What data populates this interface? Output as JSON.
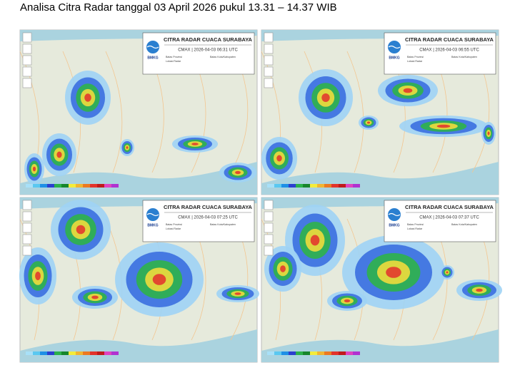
{
  "header": {
    "title": "Analisa Citra Radar tanggal 03 April 2026 pukul 13.31 – 14.37 WIB"
  },
  "panels": [
    {
      "title": "CITRA RADAR CUACA SURABAYA",
      "product": "CMAX | 2026-04-03 06:31 UTC",
      "logo": "BMKG",
      "legend": [
        "Batas Provinsi",
        "Lokasi Radar",
        "Batas Kota/Kabupaten"
      ]
    },
    {
      "title": "CITRA RADAR CUACA SURABAYA",
      "product": "CMAX | 2026-04-03 06:55 UTC",
      "logo": "BMKG",
      "legend": [
        "Batas Provinsi",
        "Lokasi Radar",
        "Batas Kota/Kabupaten"
      ]
    },
    {
      "title": "CITRA RADAR CUACA SURABAYA",
      "product": "CMAX | 2026-04-03 07:25 UTC",
      "logo": "BMKG",
      "legend": [
        "Batas Provinsi",
        "Lokasi Radar",
        "Batas Kota/Kabupaten"
      ]
    },
    {
      "title": "CITRA RADAR CUACA SURABAYA",
      "product": "CMAX | 2026-04-03 07:37 UTC",
      "logo": "BMKG",
      "legend": [
        "Batas Provinsi",
        "Lokasi Radar",
        "Batas Kota/Kabupaten"
      ]
    }
  ]
}
